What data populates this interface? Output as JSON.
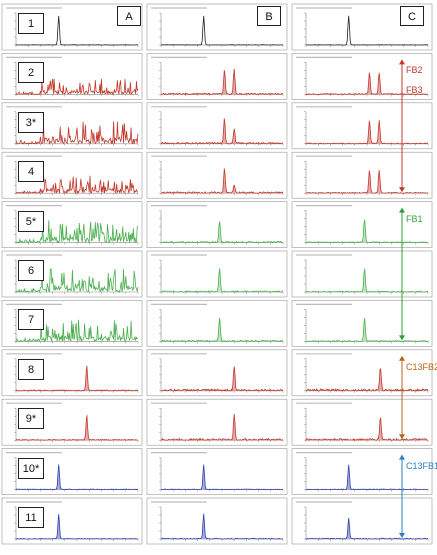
{
  "columns": [
    "A",
    "B",
    "C"
  ],
  "rows": [
    "1",
    "2",
    "3*",
    "4",
    "5*",
    "6",
    "7",
    "8",
    "9*",
    "10*",
    "11"
  ],
  "groups": [
    {
      "labels": [
        "FB2",
        "FB3"
      ],
      "color": "#c0392b",
      "rows": [
        1,
        3
      ]
    },
    {
      "labels": [
        "FB1"
      ],
      "color": "#2e9e3a",
      "rows": [
        4,
        6
      ]
    },
    {
      "labels": [
        "C13FB2"
      ],
      "color": "#b8651a",
      "rows": [
        7,
        8
      ]
    },
    {
      "labels": [
        "C13FB1"
      ],
      "color": "#2a7fc1",
      "rows": [
        9,
        10
      ]
    }
  ],
  "colors": {
    "black": "#222222",
    "red": "#c0392b",
    "red_fill": "#e8a0a0",
    "green": "#4caf50",
    "green_fill": "#b9e3b9",
    "blue": "#3344aa",
    "blue_fill": "#9aa2e0",
    "panel_bg": "#ffffff",
    "panel_border": "#9a9a9a"
  },
  "chart_data": {
    "type": "line",
    "title": "",
    "xlabel": "",
    "ylabel": "",
    "x_range": [
      0,
      10
    ],
    "y_range": [
      0,
      1.1
    ],
    "panel_rows": [
      {
        "row": "1",
        "color": "black",
        "A": {
          "peaks": [
            [
              3.5,
              1.0
            ]
          ],
          "noise": 0.01
        },
        "B": {
          "peaks": [
            [
              3.5,
              1.0
            ]
          ],
          "noise": 0.01
        },
        "C": {
          "peaks": [
            [
              3.5,
              1.0
            ]
          ],
          "noise": 0.01
        }
      },
      {
        "row": "2",
        "color": "red",
        "A": {
          "peaks": [],
          "noise": 0.55
        },
        "B": {
          "peaks": [
            [
              5.2,
              0.85
            ],
            [
              6.0,
              0.85
            ]
          ],
          "noise": 0.04
        },
        "C": {
          "peaks": [
            [
              5.2,
              0.75
            ],
            [
              6.0,
              0.75
            ]
          ],
          "noise": 0.03
        }
      },
      {
        "row": "3*",
        "color": "red",
        "A": {
          "peaks": [],
          "noise": 0.8
        },
        "B": {
          "peaks": [
            [
              5.2,
              0.85
            ],
            [
              6.0,
              0.5
            ]
          ],
          "noise": 0.05
        },
        "C": {
          "peaks": [
            [
              5.2,
              0.8
            ],
            [
              6.0,
              0.8
            ]
          ],
          "noise": 0.03
        }
      },
      {
        "row": "4",
        "color": "red",
        "A": {
          "peaks": [],
          "noise": 0.6
        },
        "B": {
          "peaks": [
            [
              5.2,
              0.85
            ],
            [
              6.0,
              0.25
            ]
          ],
          "noise": 0.05
        },
        "C": {
          "peaks": [
            [
              5.2,
              0.8
            ],
            [
              6.0,
              0.8
            ]
          ],
          "noise": 0.03
        }
      },
      {
        "row": "5*",
        "color": "green",
        "A": {
          "peaks": [],
          "noise": 0.8
        },
        "B": {
          "peaks": [
            [
              4.8,
              0.75
            ]
          ],
          "noise": 0.04
        },
        "C": {
          "peaks": [
            [
              4.8,
              0.8
            ]
          ],
          "noise": 0.03
        }
      },
      {
        "row": "6",
        "color": "green",
        "A": {
          "peaks": [],
          "noise": 0.8
        },
        "B": {
          "peaks": [
            [
              4.8,
              0.8
            ]
          ],
          "noise": 0.04
        },
        "C": {
          "peaks": [
            [
              4.8,
              0.8
            ]
          ],
          "noise": 0.03
        }
      },
      {
        "row": "7",
        "color": "green",
        "A": {
          "peaks": [],
          "noise": 0.75
        },
        "B": {
          "peaks": [
            [
              4.8,
              0.8
            ]
          ],
          "noise": 0.04
        },
        "C": {
          "peaks": [
            [
              4.8,
              0.8
            ]
          ],
          "noise": 0.03
        }
      },
      {
        "row": "8",
        "color": "red",
        "A": {
          "peaks": [
            [
              5.8,
              0.85
            ]
          ],
          "noise": 0.03
        },
        "B": {
          "peaks": [
            [
              6.0,
              0.85
            ]
          ],
          "noise": 0.06
        },
        "C": {
          "peaks": [
            [
              6.1,
              0.8
            ]
          ],
          "noise": 0.06
        }
      },
      {
        "row": "9*",
        "color": "red",
        "A": {
          "peaks": [
            [
              5.8,
              0.85
            ]
          ],
          "noise": 0.03
        },
        "B": {
          "peaks": [
            [
              6.0,
              0.85
            ]
          ],
          "noise": 0.06
        },
        "C": {
          "peaks": [
            [
              6.1,
              0.8
            ]
          ],
          "noise": 0.06
        }
      },
      {
        "row": "10*",
        "color": "blue",
        "A": {
          "peaks": [
            [
              3.5,
              0.85
            ]
          ],
          "noise": 0.02
        },
        "B": {
          "peaks": [
            [
              3.5,
              0.85
            ]
          ],
          "noise": 0.02
        },
        "C": {
          "peaks": [
            [
              3.5,
              0.85
            ]
          ],
          "noise": 0.02
        }
      },
      {
        "row": "11",
        "color": "blue",
        "A": {
          "peaks": [
            [
              3.5,
              0.85
            ]
          ],
          "noise": 0.02
        },
        "B": {
          "peaks": [
            [
              3.5,
              0.85
            ]
          ],
          "noise": 0.03
        },
        "C": {
          "peaks": [
            [
              3.5,
              0.7
            ]
          ],
          "noise": 0.03
        }
      }
    ]
  }
}
